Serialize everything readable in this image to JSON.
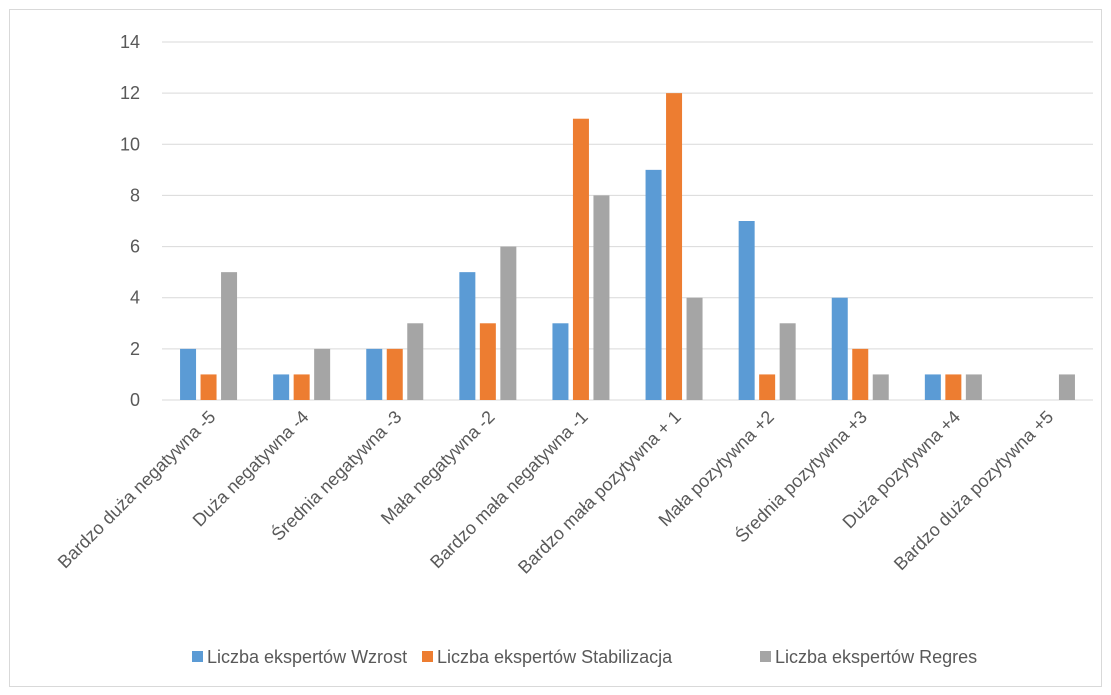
{
  "chart_data": {
    "type": "bar",
    "categories": [
      "Bardzo duża negatywna -5",
      "Duża negatywna -4",
      "Średnia negatywna -3",
      "Mała negatywna -2",
      "Bardzo mała negatywna -1",
      "Bardzo mała pozytywna + 1",
      "Mała pozytywna +2",
      "Średnia pozytywna +3",
      "Duża pozytywna +4",
      "Bardzo duża pozytywna +5"
    ],
    "series": [
      {
        "name": "Liczba ekspertów Wzrost",
        "color": "#5b9bd5",
        "values": [
          2,
          1,
          2,
          5,
          3,
          9,
          7,
          4,
          1,
          0
        ]
      },
      {
        "name": "Liczba ekspertów Stabilizacja",
        "color": "#ed7d31",
        "values": [
          1,
          1,
          2,
          3,
          11,
          12,
          1,
          2,
          1,
          0
        ]
      },
      {
        "name": "Liczba ekspertów Regres",
        "color": "#a5a5a5",
        "values": [
          5,
          2,
          3,
          6,
          8,
          4,
          3,
          1,
          1,
          1
        ]
      }
    ],
    "yticks": [
      "0",
      "2",
      "4",
      "6",
      "8",
      "10",
      "12",
      "14"
    ],
    "ylim": [
      0,
      14
    ],
    "grid": true,
    "legend": "bottom",
    "title": "",
    "xlabel": "",
    "ylabel": ""
  }
}
